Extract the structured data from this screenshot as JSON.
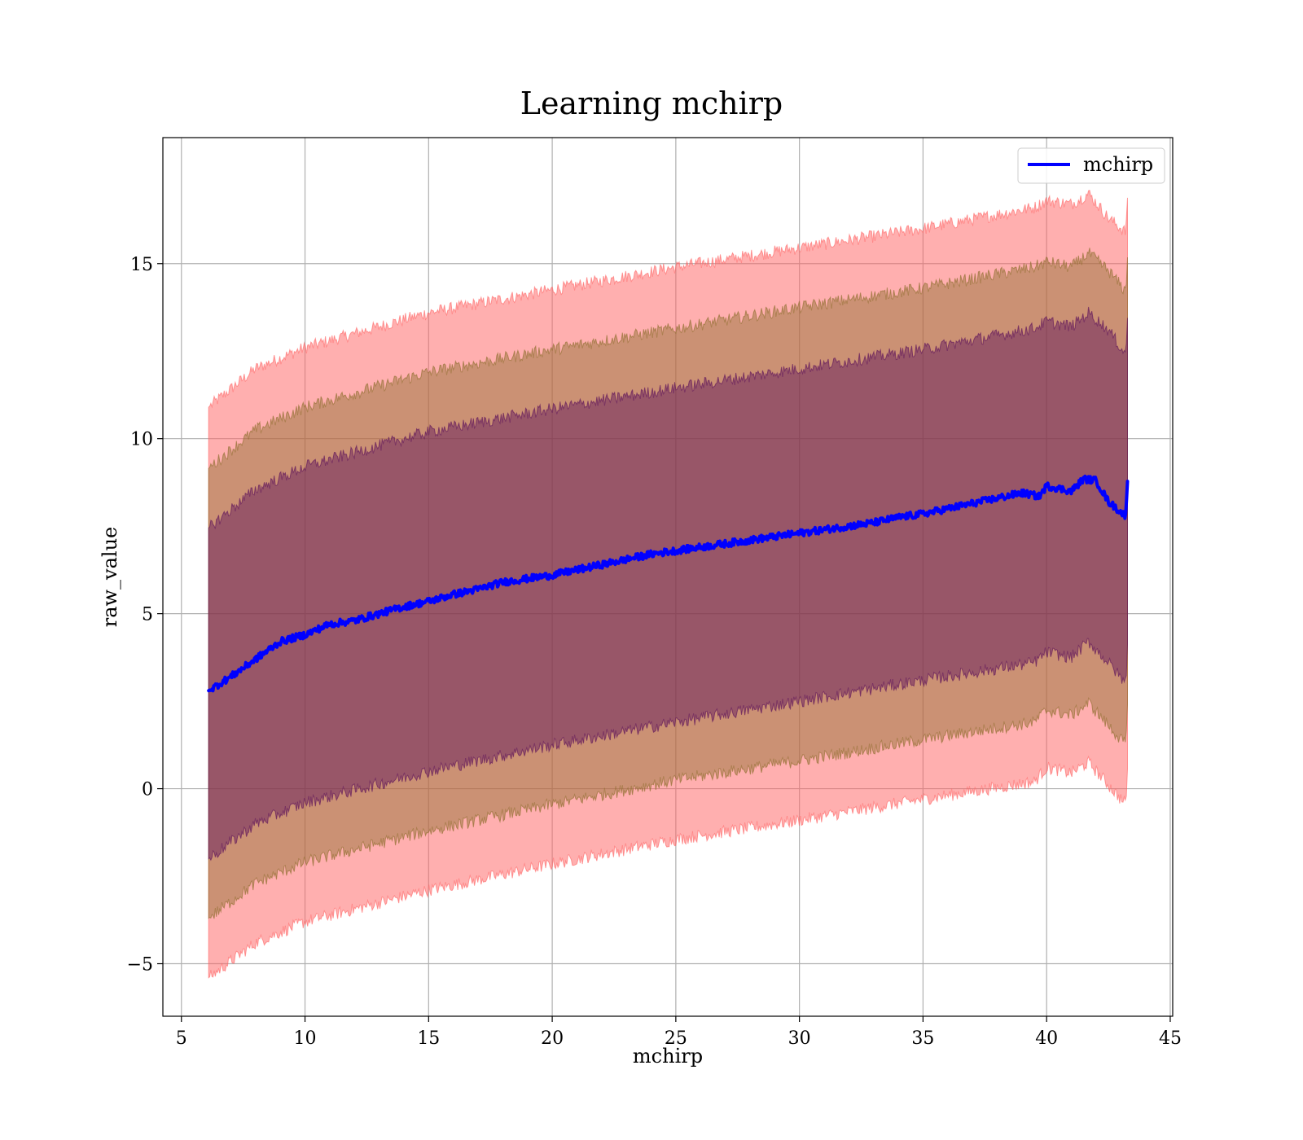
{
  "chart_data": {
    "type": "line",
    "title": "Learning mchirp",
    "xlabel": "mchirp",
    "ylabel": "raw_value",
    "xlim": [
      4.25,
      45.1
    ],
    "ylim": [
      -6.5,
      18.6
    ],
    "xticks": [
      5,
      10,
      15,
      20,
      25,
      30,
      35,
      40,
      45
    ],
    "xtick_labels": [
      "5",
      "10",
      "15",
      "20",
      "25",
      "30",
      "35",
      "40",
      "45"
    ],
    "yticks": [
      -5,
      0,
      5,
      10,
      15
    ],
    "ytick_labels": [
      "−5",
      "0",
      "5",
      "10",
      "15"
    ],
    "grid": true,
    "legend": {
      "position": "top-right",
      "entries": [
        "mchirp"
      ]
    },
    "series": [
      {
        "name": "mchirp",
        "color": "#0000ff",
        "x": [
          6.1,
          7.0,
          8.0,
          9.0,
          10.0,
          11.0,
          12.0,
          13.0,
          14.0,
          15.0,
          16.0,
          17.0,
          18.0,
          19.0,
          20.0,
          21.0,
          22.0,
          23.0,
          24.0,
          25.0,
          26.0,
          27.0,
          28.0,
          29.0,
          30.0,
          31.0,
          32.0,
          33.0,
          34.0,
          35.0,
          36.0,
          37.0,
          38.0,
          39.0,
          39.7,
          40.0,
          41.0,
          41.5,
          42.0,
          42.5,
          43.0,
          43.2,
          43.3
        ],
        "y": [
          2.8,
          3.2,
          3.7,
          4.2,
          4.4,
          4.7,
          4.8,
          5.0,
          5.2,
          5.35,
          5.55,
          5.7,
          5.9,
          6.0,
          6.1,
          6.25,
          6.4,
          6.55,
          6.7,
          6.8,
          6.9,
          7.0,
          7.1,
          7.2,
          7.3,
          7.4,
          7.5,
          7.6,
          7.75,
          7.85,
          8.0,
          8.15,
          8.3,
          8.45,
          8.35,
          8.65,
          8.5,
          8.85,
          8.8,
          8.2,
          7.9,
          7.8,
          9.2
        ]
      }
    ],
    "bands": [
      {
        "color": "#ff6060",
        "x": [
          6.1,
          8.0,
          10.0,
          15.0,
          20.0,
          25.0,
          30.0,
          35.0,
          39.5,
          40.0,
          41.0,
          41.7,
          42.5,
          43.2,
          43.3
        ],
        "upper": [
          10.9,
          12.0,
          12.6,
          13.6,
          14.25,
          14.9,
          15.45,
          16.0,
          16.6,
          16.8,
          16.7,
          17.0,
          16.3,
          15.9,
          17.3
        ],
        "lower": [
          -5.4,
          -4.4,
          -3.8,
          -2.9,
          -2.15,
          -1.45,
          -0.9,
          -0.3,
          0.2,
          0.6,
          0.45,
          0.75,
          0.1,
          -0.45,
          1.0
        ]
      },
      {
        "color": "#8c6d2c",
        "x": [
          6.1,
          8.0,
          10.0,
          15.0,
          20.0,
          25.0,
          30.0,
          35.0,
          39.5,
          40.0,
          41.0,
          41.7,
          42.5,
          43.2,
          43.3
        ],
        "upper": [
          9.15,
          10.25,
          10.9,
          11.9,
          12.55,
          13.15,
          13.75,
          14.3,
          14.9,
          15.05,
          14.9,
          15.3,
          14.8,
          14.2,
          15.6
        ],
        "lower": [
          -3.7,
          -2.7,
          -2.1,
          -1.2,
          -0.45,
          0.25,
          0.8,
          1.4,
          1.9,
          2.25,
          2.1,
          2.45,
          1.8,
          1.25,
          2.9
        ]
      },
      {
        "color": "#5a0f5a",
        "x": [
          6.1,
          8.0,
          10.0,
          15.0,
          20.0,
          25.0,
          30.0,
          35.0,
          39.5,
          40.0,
          41.0,
          41.7,
          42.5,
          43.2,
          43.3
        ],
        "upper": [
          7.45,
          8.55,
          9.2,
          10.2,
          10.85,
          11.45,
          12.0,
          12.55,
          13.15,
          13.35,
          13.2,
          13.6,
          13.1,
          12.4,
          13.9
        ],
        "lower": [
          -2.0,
          -1.0,
          -0.4,
          0.5,
          1.25,
          1.9,
          2.5,
          3.1,
          3.6,
          3.9,
          3.75,
          4.2,
          3.6,
          3.0,
          4.6
        ]
      }
    ]
  }
}
